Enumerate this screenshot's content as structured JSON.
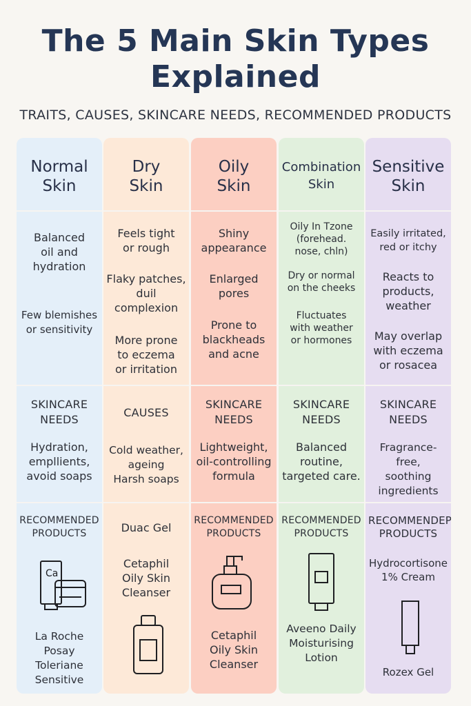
{
  "title": "The 5 Main Skin Types\nExplained",
  "subtitle": "TRAITS, CAUSES, SKINCARE NEEDS, RECOMMENDED PRODUCTS",
  "columns": [
    {
      "header": "Normal\nSkin",
      "traits": [
        "Balanced\noil and\nhydration",
        "Few blemishes\nor sensitivity"
      ],
      "section_heading": "SKINCARE\nNEEDS",
      "section_text": "Hydration,\nempllients,\navoid soaps",
      "products_heading": "RECOMMENDED\nPRODUCTS",
      "jar_label": "Ca",
      "products": [
        "La Roche\nPosay\nToleriane\nSensitive"
      ],
      "color": "#e4eff9"
    },
    {
      "header": "Dry\nSkin",
      "traits": [
        "Feels tight\nor rough",
        "Flaky patches,\nduil\ncomplexion",
        "More prone\nto eczema\nor irritation"
      ],
      "section_heading": "CAUSES",
      "section_text": "Cold weather,\nageing\nHarsh soaps",
      "products": [
        "Duac Gel",
        "Cetaphil\nOily Skin\nCleanser"
      ],
      "color": "#fde9d8"
    },
    {
      "header": "Oily\nSkin",
      "traits": [
        "Shiny\nappearance",
        "Enlarged\npores",
        "Prone to\nblackheads\nand acne"
      ],
      "section_heading": "SKINCARE\nNEEDS",
      "section_text": "Lightweight,\noil-controlling\nformula",
      "products_heading": "RECOMMENDED\nPRODUCTS",
      "products": [
        "Cetaphil\nOily Skin\nCleanser"
      ],
      "color": "#fccfc2"
    },
    {
      "header": "Combination\nSkin",
      "traits": [
        "Oily In Tzone\n(forehead.\nnose, chln)",
        "Dry or normal\non the cheeks",
        "Fluctuates\nwith weather\nor hormones"
      ],
      "section_heading": "SKINCARE\nNEEDS",
      "section_text": "Balanced\nroutine,\ntargeted care.",
      "products_heading": "RECOMMENDED\nPRODUCTS",
      "products": [
        "Aveeno Daily\nMoisturising\nLotion"
      ],
      "color": "#e1f0dd"
    },
    {
      "header": "Sensitive\nSkin",
      "traits": [
        "Easily irritated,\nred or itchy",
        "Reacts to\nproducts,\nweather",
        "May overlap\nwith eczema\nor rosacea"
      ],
      "section_heading": "SKINCARE\nNEEDS",
      "section_text": "Fragrance-free,\nsoothing\ningredients",
      "products_heading": "RECOMMENDEP\nPRODUCTS",
      "products": [
        "Hydrocortisone\n1% Cream",
        "Rozex Gel"
      ],
      "color": "#e6ddf1"
    }
  ]
}
